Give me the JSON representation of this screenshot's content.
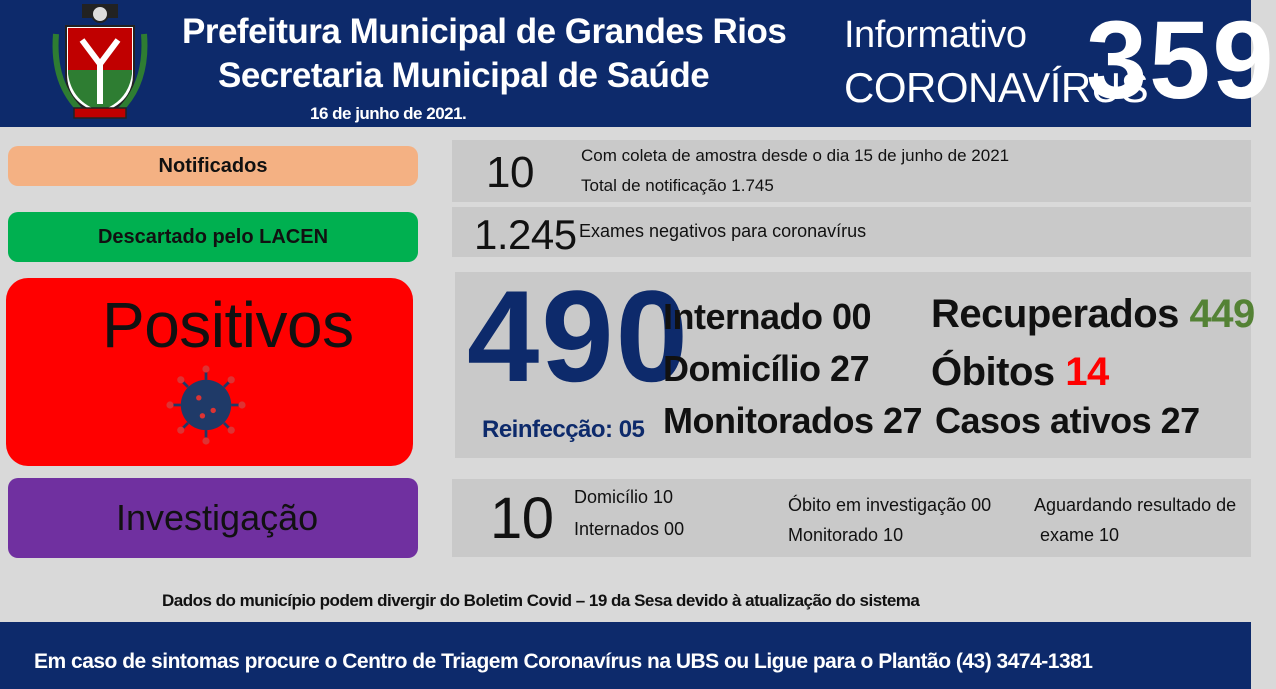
{
  "header": {
    "title_line1": "Prefeitura Municipal de Grandes Rios",
    "title_line2": "Secretaria Municipal de Saúde",
    "date": "16 de junho de 2021.",
    "info_label1": "Informativo",
    "info_label2": "CORONAVÍRUS",
    "bulletin_number": "359"
  },
  "notificados": {
    "label": "Notificados",
    "count": "10",
    "line1": "Com coleta de amostra desde o dia 15 de junho de 2021",
    "line2": "Total de notificação 1.745"
  },
  "descartado": {
    "label": "Descartado pelo LACEN",
    "count": "1.245",
    "line1": "Exames negativos para coronavírus"
  },
  "positivos": {
    "label": "Positivos",
    "count": "490",
    "reinfeccao": "Reinfecção: 05",
    "internado_label": "Internado",
    "internado": "00",
    "domicilio_label": "Domicílio",
    "domicilio": "27",
    "monitorados_label": "Monitorados",
    "monitorados": "27",
    "recuperados_label": "Recuperados",
    "recuperados": "449",
    "obitos_label": "Óbitos",
    "obitos": "14",
    "ativos_label": "Casos ativos",
    "ativos": "27"
  },
  "investigacao": {
    "label": "Investigação",
    "count": "10",
    "domicilio": "Domicílio 10",
    "internados": "Internados 00",
    "obito": "Óbito em investigação 00",
    "monitorado": "Monitorado 10",
    "aguardando1": "Aguardando resultado de",
    "aguardando2": "exame 10"
  },
  "disclaimer": "Dados do município podem divergir do Boletim Covid – 19 da Sesa devido à atualização do sistema",
  "footer_text": "Em caso de sintomas procure o Centro de Triagem Coronavírus na UBS ou Ligue para o Plantão (43) 3474-1381",
  "colors": {
    "navy": "#0d2a6b",
    "notificados": "#f4b183",
    "descartado": "#00b050",
    "positivos": "#ff0000",
    "investigacao": "#7030a0",
    "recuperados": "#548235",
    "obitos": "#ff0000"
  }
}
